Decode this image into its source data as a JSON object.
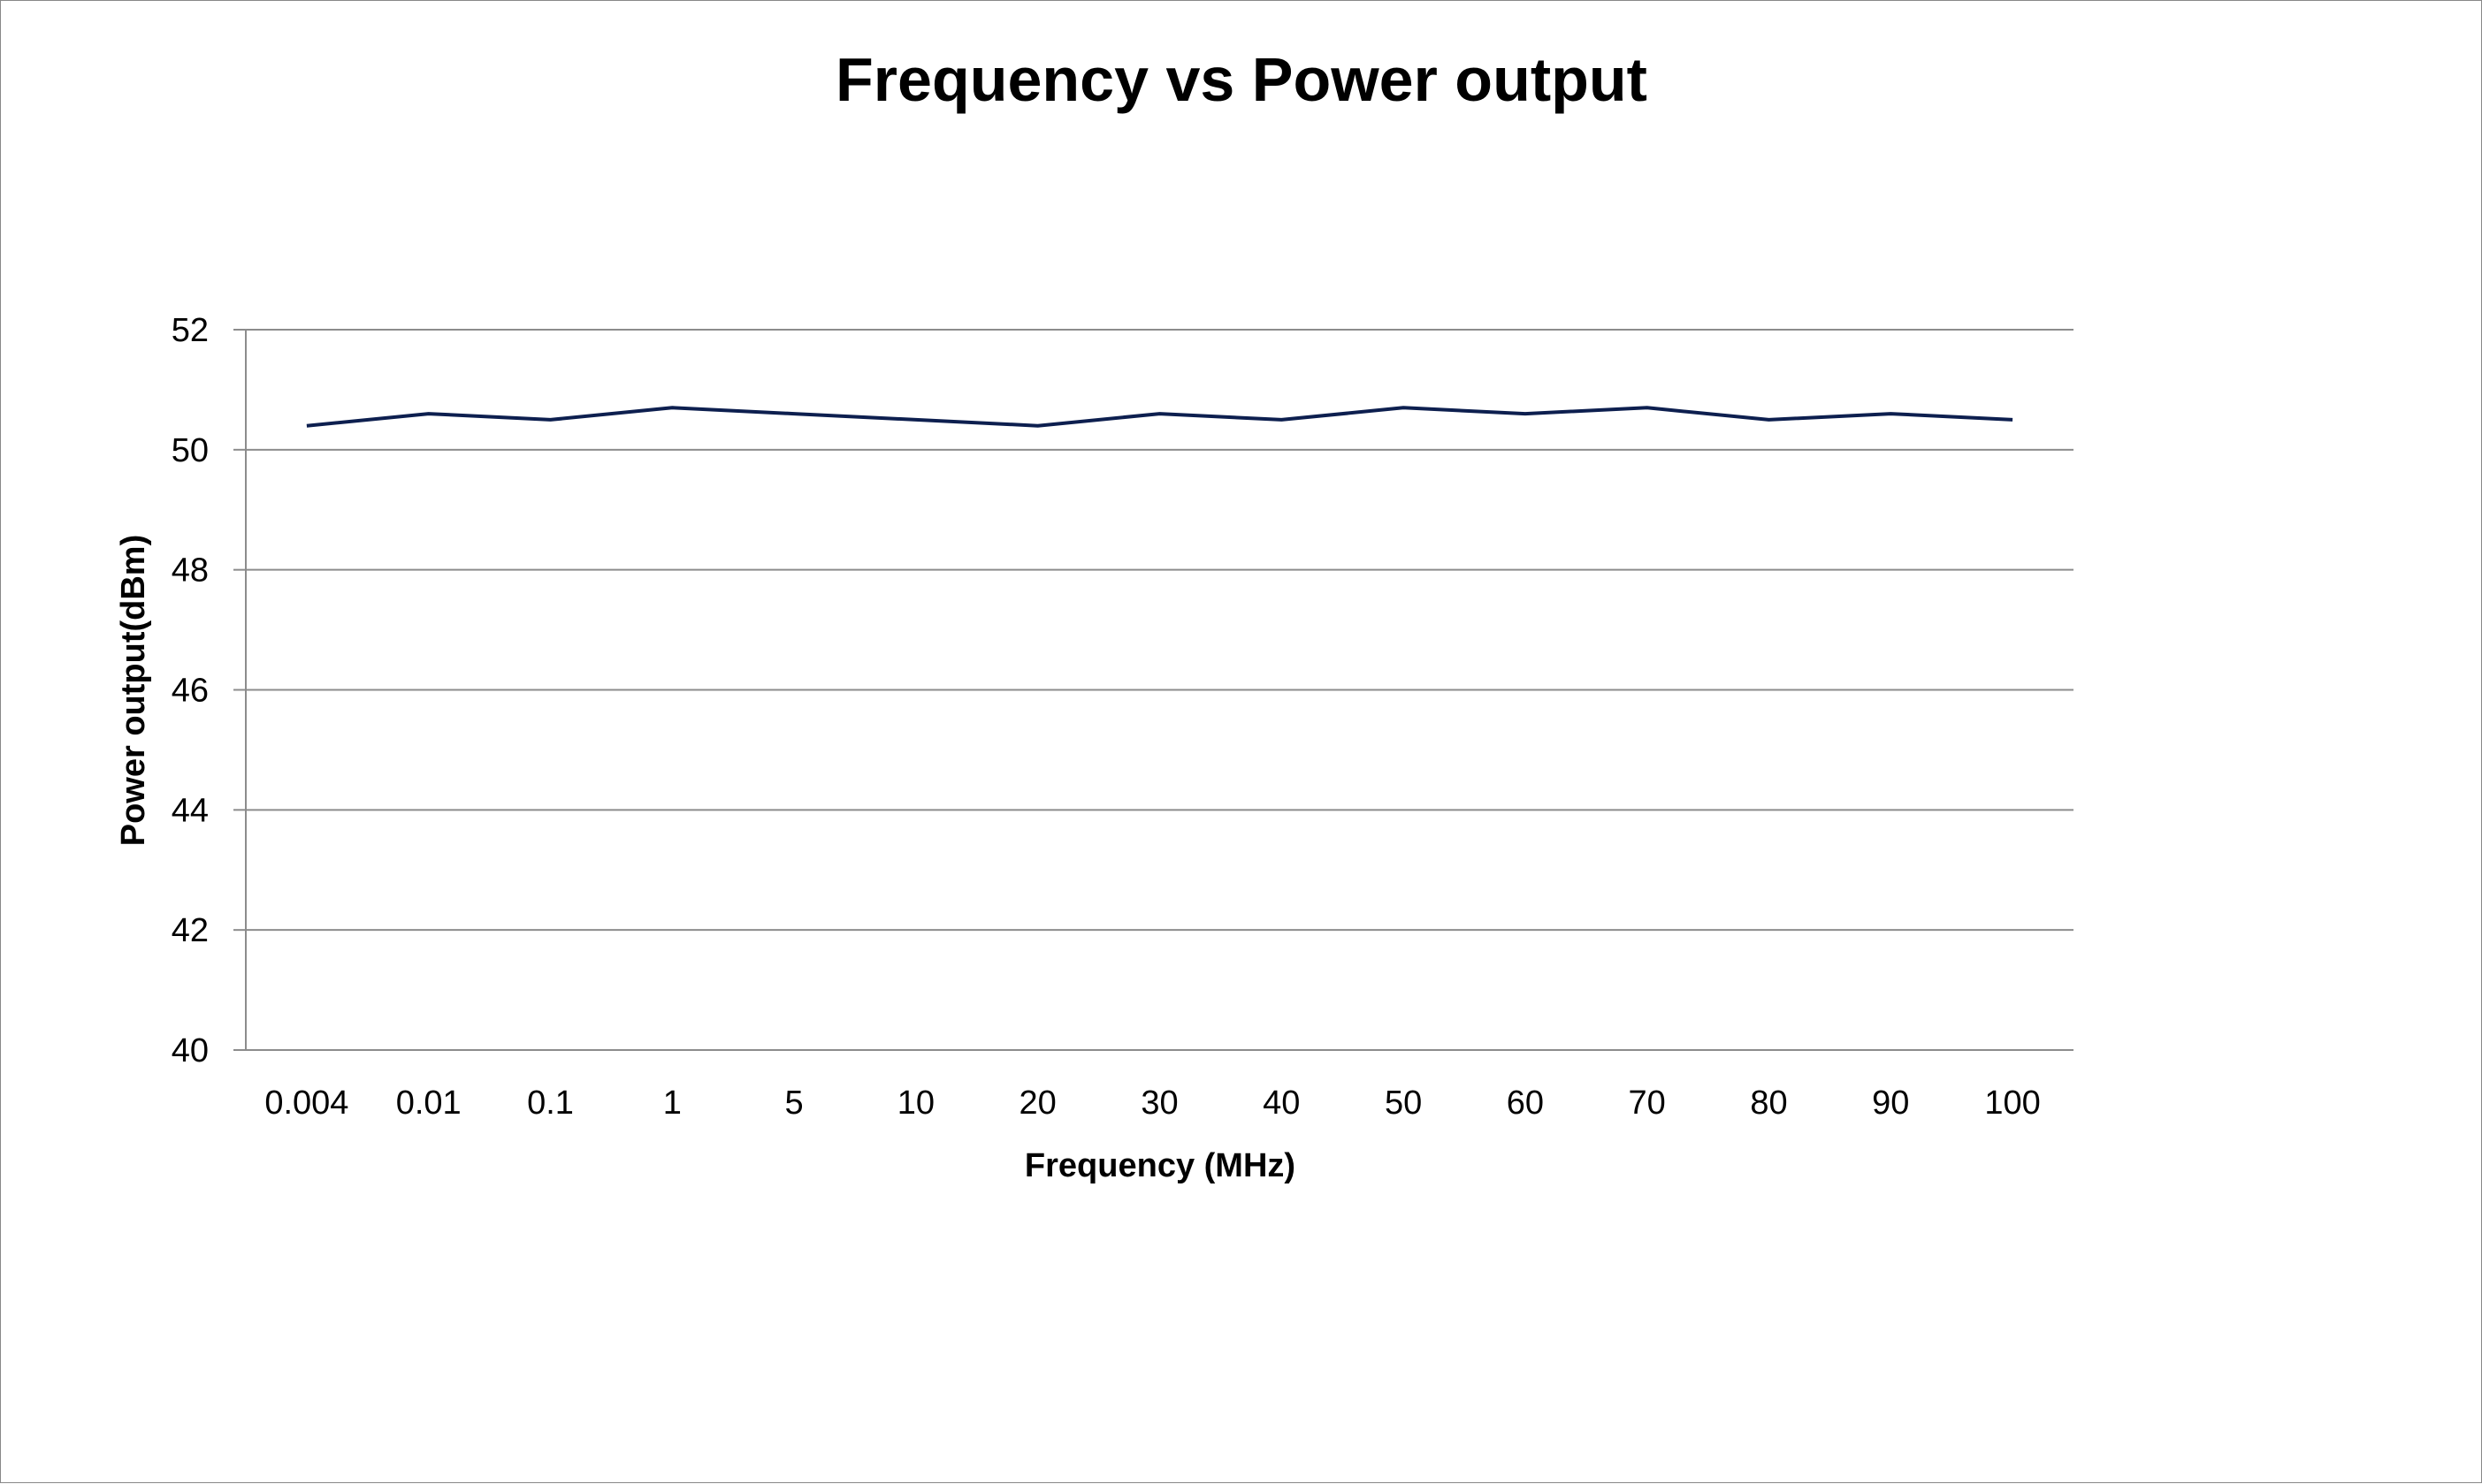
{
  "chart_data": {
    "type": "line",
    "title": "Frequency vs Power output",
    "xlabel": "Frequency (MHz)",
    "ylabel": "Power output(dBm)",
    "categories": [
      "0.004",
      "0.01",
      "0.1",
      "1",
      "5",
      "10",
      "20",
      "30",
      "40",
      "50",
      "60",
      "70",
      "80",
      "90",
      "100"
    ],
    "series": [
      {
        "values": [
          50.4,
          50.6,
          50.5,
          50.7,
          50.6,
          50.5,
          50.4,
          50.6,
          50.5,
          50.7,
          50.6,
          50.7,
          50.5,
          50.6,
          50.5
        ],
        "color": "#0d1f4f"
      }
    ],
    "ylim": [
      40,
      52
    ],
    "yticks": [
      40,
      42,
      44,
      46,
      48,
      50,
      52
    ],
    "grid": true,
    "legend": "none"
  }
}
